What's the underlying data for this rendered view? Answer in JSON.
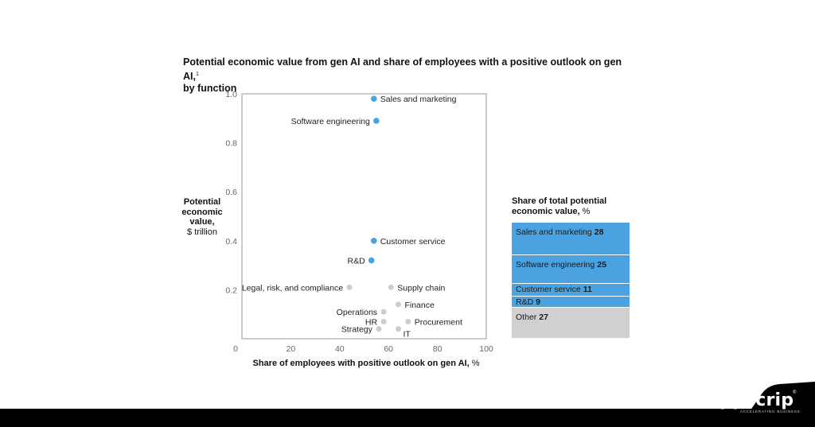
{
  "chart_data": {
    "type": "scatter",
    "title": "Potential economic value from gen AI and share of employees with a positive outlook on gen AI,",
    "title_line2": "by function",
    "title_footnote": "1",
    "xlabel_bold": "Share of employees with positive outlook on gen AI,",
    "xlabel_unit": "%",
    "ylabel_bold": "Potential economic value,",
    "ylabel_unit": "$ trillion",
    "xlim": [
      0,
      100
    ],
    "ylim": [
      0,
      1.0
    ],
    "x_ticks": [
      "0",
      "20",
      "40",
      "60",
      "80",
      "100"
    ],
    "y_ticks": [
      "0.2",
      "0.4",
      "0.6",
      "0.8",
      "1.0"
    ],
    "grid": false,
    "colors": {
      "highlight": "#4aa3e0",
      "other": "#cccccc"
    },
    "points": [
      {
        "label": "Sales and marketing",
        "x": 54,
        "y": 0.98,
        "group": "highlight",
        "label_side": "right"
      },
      {
        "label": "Software engineering",
        "x": 55,
        "y": 0.89,
        "group": "highlight",
        "label_side": "left"
      },
      {
        "label": "Customer service",
        "x": 54,
        "y": 0.4,
        "group": "highlight",
        "label_side": "right"
      },
      {
        "label": "R&D",
        "x": 53,
        "y": 0.32,
        "group": "highlight",
        "label_side": "left"
      },
      {
        "label": "Legal, risk, and compliance",
        "x": 44,
        "y": 0.21,
        "group": "other",
        "label_side": "left"
      },
      {
        "label": "Supply chain",
        "x": 61,
        "y": 0.21,
        "group": "other",
        "label_side": "right"
      },
      {
        "label": "Operations",
        "x": 58,
        "y": 0.11,
        "group": "other",
        "label_side": "left"
      },
      {
        "label": "Finance",
        "x": 64,
        "y": 0.14,
        "group": "other",
        "label_side": "right"
      },
      {
        "label": "HR",
        "x": 58,
        "y": 0.07,
        "group": "other",
        "label_side": "left"
      },
      {
        "label": "Procurement",
        "x": 68,
        "y": 0.07,
        "group": "other",
        "label_side": "right"
      },
      {
        "label": "Strategy",
        "x": 56,
        "y": 0.04,
        "group": "other",
        "label_side": "left"
      },
      {
        "label": "IT",
        "x": 64,
        "y": 0.04,
        "group": "other",
        "label_side": "right_below"
      }
    ]
  },
  "share_panel": {
    "title_bold": "Share of total potential economic value,",
    "title_unit": "%",
    "segments": [
      {
        "label": "Sales and marketing",
        "value": 28,
        "color": "#4aa3e0"
      },
      {
        "label": "Software engineering",
        "value": 25,
        "color": "#4aa3e0"
      },
      {
        "label": "Customer service",
        "value": 11,
        "color": "#4aa3e0"
      },
      {
        "label": "R&D",
        "value": 9,
        "color": "#4aa3e0"
      },
      {
        "label": "Other",
        "value": 27,
        "color": "#d0d0d0"
      }
    ]
  },
  "branding": {
    "logo_text": "appscrip",
    "logo_tagline": "ACCELERATING BUSINESS",
    "logo_mark": "®"
  }
}
